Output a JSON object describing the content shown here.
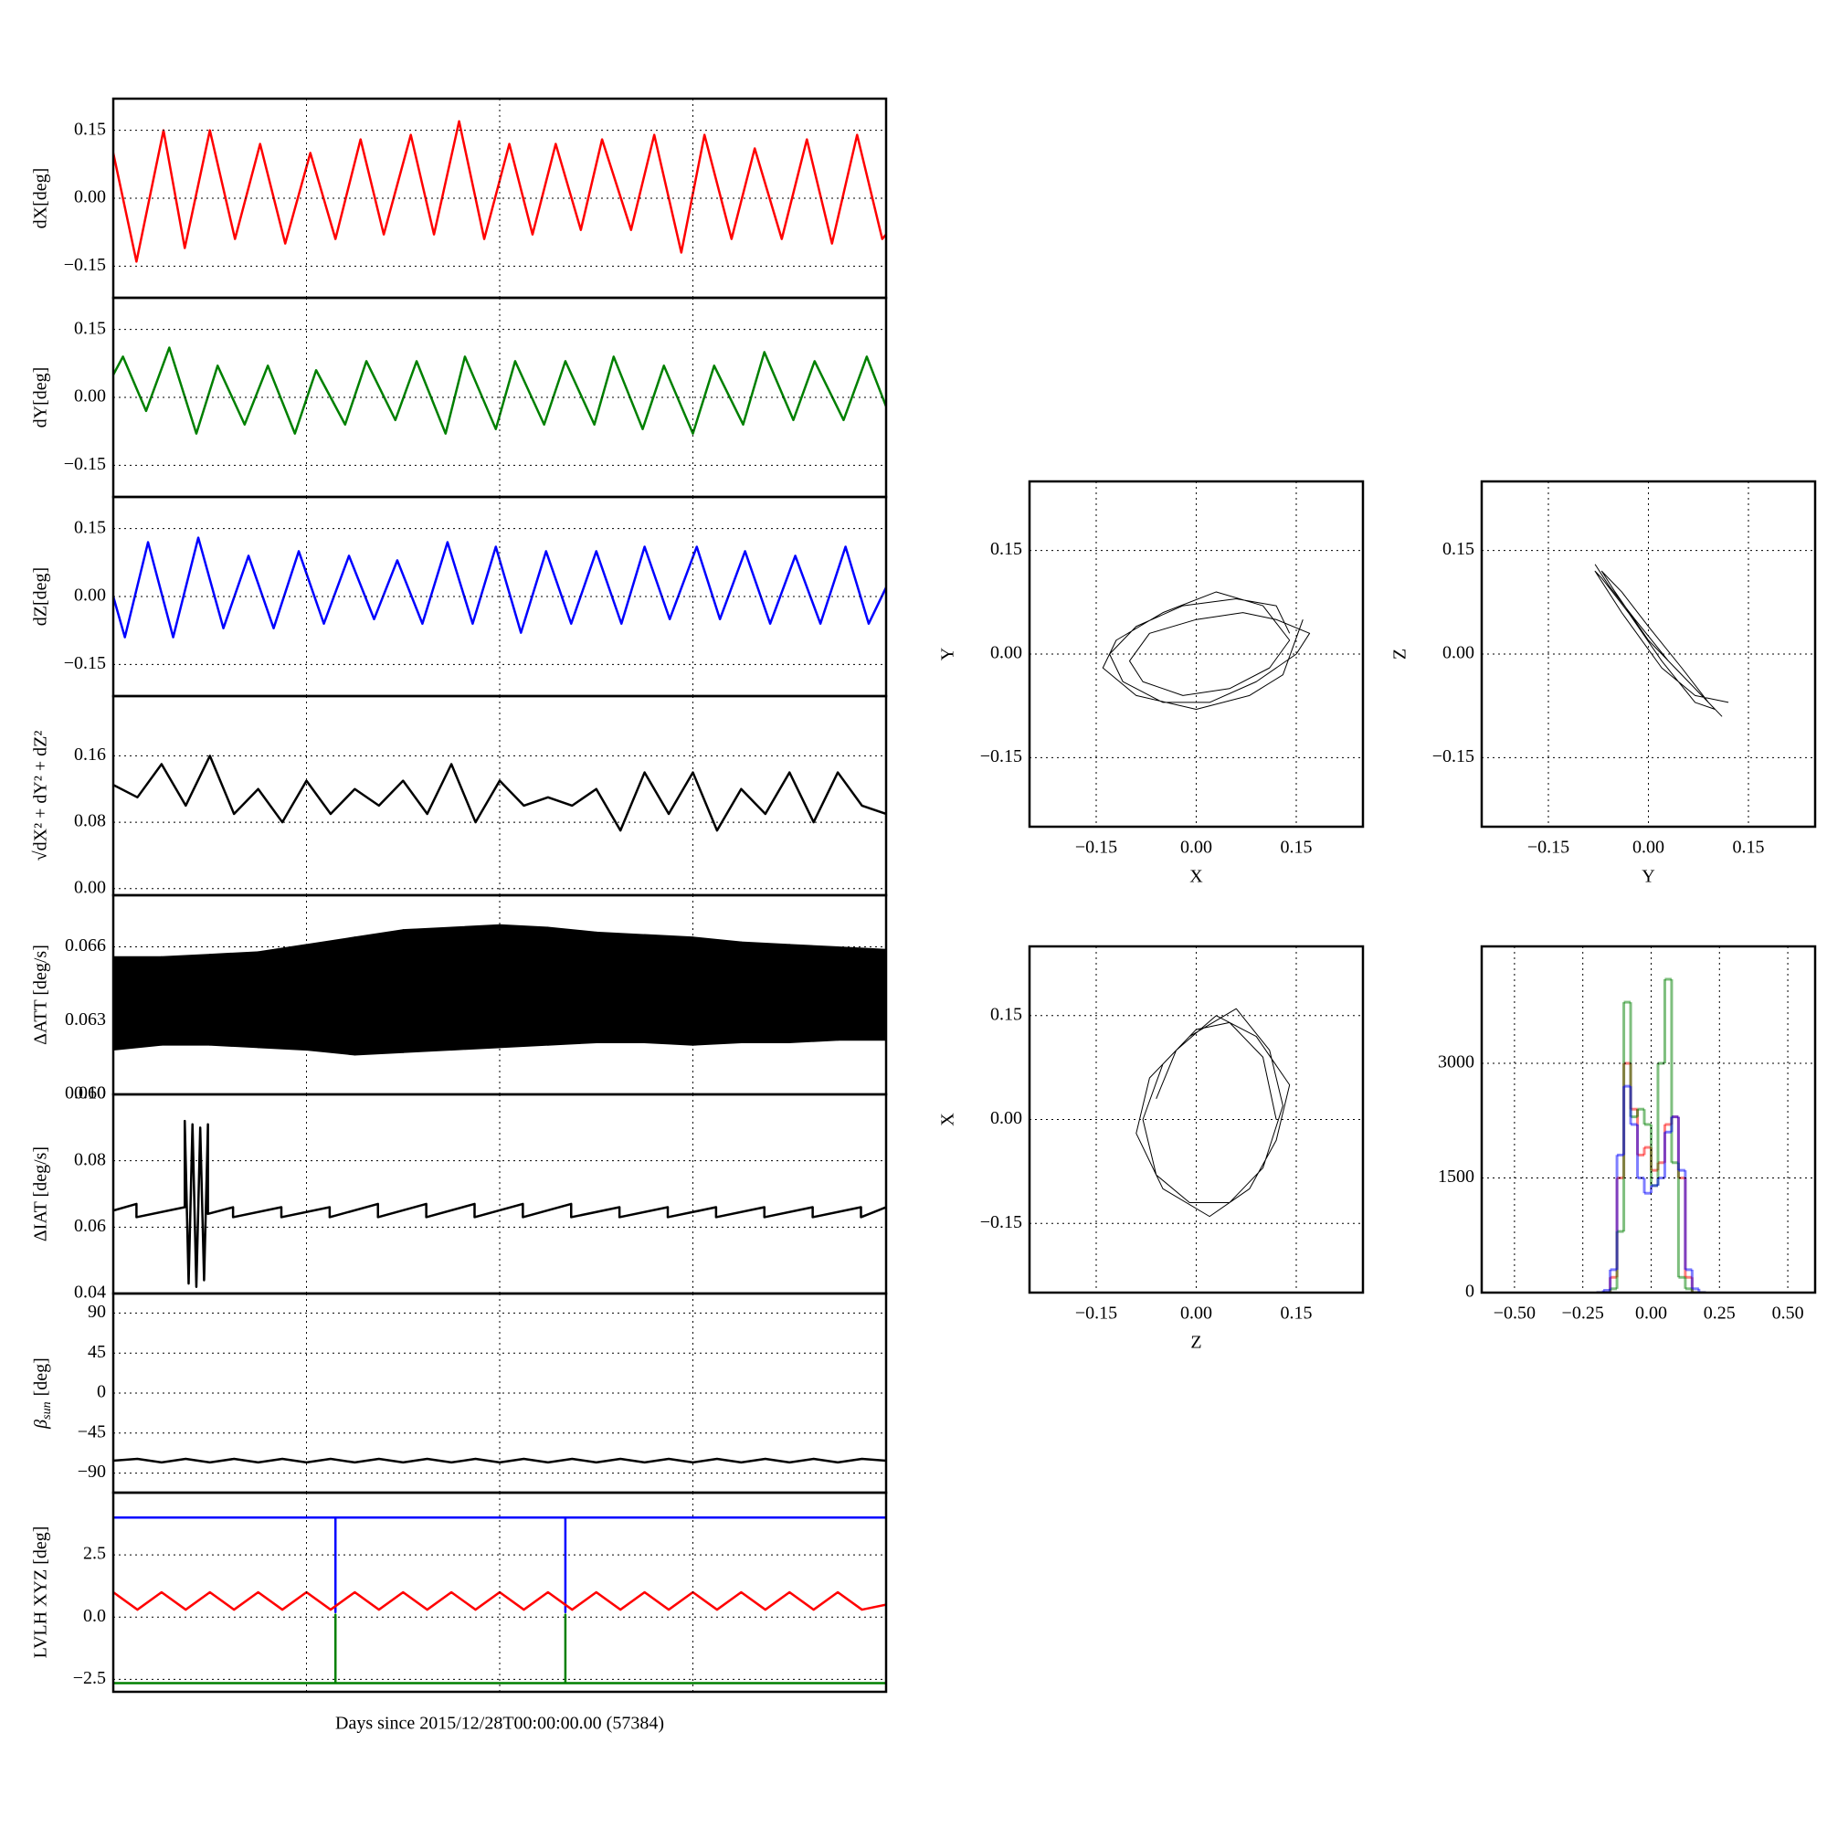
{
  "chart_data": [
    {
      "type": "line",
      "ylabel": "dX[deg]",
      "color": "#ff0000",
      "x": [
        0,
        0.12,
        0.26,
        0.37,
        0.5,
        0.63,
        0.76,
        0.89,
        1.02,
        1.15,
        1.28,
        1.4,
        1.54,
        1.66,
        1.79,
        1.92,
        2.05,
        2.17,
        2.29,
        2.42,
        2.53,
        2.68,
        2.8,
        2.94,
        3.06,
        3.2,
        3.32,
        3.46,
        3.59,
        3.72,
        3.85,
        3.98,
        4.0
      ],
      "values": [
        0.1,
        -0.14,
        0.15,
        -0.11,
        0.15,
        -0.09,
        0.12,
        -0.1,
        0.1,
        -0.09,
        0.13,
        -0.08,
        0.14,
        -0.08,
        0.17,
        -0.09,
        0.12,
        -0.08,
        0.12,
        -0.07,
        0.13,
        -0.07,
        0.14,
        -0.12,
        0.14,
        -0.09,
        0.11,
        -0.09,
        0.13,
        -0.1,
        0.14,
        -0.09,
        -0.08
      ],
      "xlim": [
        0,
        4
      ],
      "xticks": [
        0,
        1,
        2,
        3,
        4
      ],
      "ylim": [
        -0.22,
        0.22
      ],
      "yticks": [
        {
          "value": -0.15,
          "label": "−0.15"
        },
        {
          "value": 0,
          "label": "0.00"
        },
        0.15
      ],
      "grid": true
    },
    {
      "type": "line",
      "ylabel": "dY[deg]",
      "color": "#008000",
      "x": [
        0,
        0.05,
        0.17,
        0.29,
        0.43,
        0.54,
        0.68,
        0.8,
        0.94,
        1.05,
        1.2,
        1.31,
        1.46,
        1.57,
        1.72,
        1.82,
        1.98,
        2.08,
        2.23,
        2.34,
        2.49,
        2.59,
        2.74,
        2.85,
        3.0,
        3.11,
        3.26,
        3.37,
        3.52,
        3.63,
        3.78,
        3.9,
        4.0
      ],
      "values": [
        0.05,
        0.09,
        -0.03,
        0.11,
        -0.08,
        0.07,
        -0.06,
        0.07,
        -0.08,
        0.06,
        -0.06,
        0.08,
        -0.05,
        0.08,
        -0.08,
        0.09,
        -0.07,
        0.08,
        -0.06,
        0.08,
        -0.06,
        0.09,
        -0.07,
        0.07,
        -0.08,
        0.07,
        -0.06,
        0.1,
        -0.05,
        0.08,
        -0.05,
        0.09,
        -0.02
      ],
      "xlim": [
        0,
        4
      ],
      "xticks": [
        0,
        1,
        2,
        3,
        4
      ],
      "ylim": [
        -0.22,
        0.22
      ],
      "yticks": [
        {
          "value": -0.15,
          "label": "−0.15"
        },
        {
          "value": 0,
          "label": "0.00"
        },
        0.15
      ],
      "grid": true
    },
    {
      "type": "line",
      "ylabel": "dZ[deg]",
      "color": "#0000ff",
      "x": [
        0,
        0.06,
        0.18,
        0.31,
        0.44,
        0.57,
        0.7,
        0.83,
        0.96,
        1.09,
        1.22,
        1.35,
        1.47,
        1.6,
        1.73,
        1.86,
        1.98,
        2.11,
        2.24,
        2.37,
        2.5,
        2.63,
        2.75,
        2.88,
        3.02,
        3.14,
        3.27,
        3.4,
        3.53,
        3.66,
        3.79,
        3.91,
        4.0
      ],
      "values": [
        0.0,
        -0.09,
        0.12,
        -0.09,
        0.13,
        -0.07,
        0.09,
        -0.07,
        0.1,
        -0.06,
        0.09,
        -0.05,
        0.08,
        -0.06,
        0.12,
        -0.06,
        0.11,
        -0.08,
        0.1,
        -0.06,
        0.1,
        -0.06,
        0.11,
        -0.05,
        0.11,
        -0.05,
        0.1,
        -0.06,
        0.09,
        -0.06,
        0.11,
        -0.06,
        0.02
      ],
      "xlim": [
        0,
        4
      ],
      "xticks": [
        0,
        1,
        2,
        3,
        4
      ],
      "ylim": [
        -0.22,
        0.22
      ],
      "yticks": [
        {
          "value": -0.15,
          "label": "−0.15"
        },
        {
          "value": 0,
          "label": "0.00"
        },
        0.15
      ],
      "grid": true
    },
    {
      "type": "line",
      "ylabel": "√dX² + dY² + dZ²",
      "color": "#000000",
      "x": [
        0,
        0.125,
        0.25,
        0.375,
        0.5,
        0.625,
        0.75,
        0.875,
        1,
        1.125,
        1.25,
        1.375,
        1.5,
        1.625,
        1.75,
        1.875,
        2,
        2.125,
        2.25,
        2.375,
        2.5,
        2.625,
        2.75,
        2.875,
        3,
        3.125,
        3.25,
        3.375,
        3.5,
        3.625,
        3.75,
        3.875,
        4
      ],
      "values": [
        0.125,
        0.11,
        0.15,
        0.1,
        0.16,
        0.09,
        0.12,
        0.08,
        0.13,
        0.09,
        0.12,
        0.1,
        0.13,
        0.09,
        0.15,
        0.08,
        0.13,
        0.1,
        0.11,
        0.1,
        0.12,
        0.07,
        0.14,
        0.09,
        0.14,
        0.07,
        0.12,
        0.09,
        0.14,
        0.08,
        0.14,
        0.1,
        0.09
      ],
      "xlim": [
        0,
        4
      ],
      "xticks": [
        0,
        1,
        2,
        3,
        4
      ],
      "ylim": [
        -0.008,
        0.232
      ],
      "yticks": [
        {
          "value": 0,
          "label": "0.00"
        },
        0.08,
        0.16
      ],
      "grid": true
    },
    {
      "type": "band",
      "ylabel": "ΔATT [deg/s]",
      "color": "#000000",
      "x": [
        0,
        0.25,
        0.5,
        0.75,
        1,
        1.25,
        1.5,
        1.75,
        2,
        2.25,
        2.5,
        2.75,
        3,
        3.25,
        3.5,
        3.75,
        4
      ],
      "lower": [
        0.0618,
        0.062,
        0.062,
        0.0619,
        0.0618,
        0.0616,
        0.0617,
        0.0618,
        0.0619,
        0.062,
        0.0621,
        0.0621,
        0.062,
        0.0621,
        0.0621,
        0.0622,
        0.0622
      ],
      "upper": [
        0.0656,
        0.0656,
        0.0657,
        0.0658,
        0.0661,
        0.0664,
        0.0667,
        0.0668,
        0.0669,
        0.0668,
        0.0666,
        0.0665,
        0.0664,
        0.0662,
        0.0661,
        0.066,
        0.0659
      ],
      "xlim": [
        0,
        4
      ],
      "xticks": [
        0,
        1,
        2,
        3,
        4
      ],
      "ylim": [
        0.06,
        0.0681
      ],
      "yticks": [
        {
          "value": 0.06,
          "label": "0.060"
        },
        0.063,
        0.066
      ],
      "grid": true
    },
    {
      "type": "line",
      "ylabel": "ΔIAT [deg/s]",
      "color": "#000000",
      "x": [
        0,
        0.12,
        0.12,
        0.37,
        0.37,
        0.39,
        0.41,
        0.43,
        0.45,
        0.47,
        0.49,
        0.49,
        0.62,
        0.62,
        0.87,
        0.87,
        1.12,
        1.12,
        1.37,
        1.37,
        1.62,
        1.62,
        1.87,
        1.87,
        2.12,
        2.12,
        2.37,
        2.37,
        2.62,
        2.62,
        2.87,
        2.87,
        3.12,
        3.12,
        3.37,
        3.37,
        3.62,
        3.62,
        3.87,
        3.87,
        4.0
      ],
      "values": [
        0.065,
        0.067,
        0.063,
        0.066,
        0.092,
        0.043,
        0.091,
        0.042,
        0.09,
        0.044,
        0.091,
        0.064,
        0.066,
        0.063,
        0.066,
        0.063,
        0.066,
        0.063,
        0.067,
        0.063,
        0.067,
        0.063,
        0.067,
        0.063,
        0.067,
        0.063,
        0.067,
        0.063,
        0.066,
        0.063,
        0.066,
        0.063,
        0.066,
        0.063,
        0.066,
        0.063,
        0.066,
        0.063,
        0.066,
        0.063,
        0.066
      ],
      "xlim": [
        0,
        4
      ],
      "xticks": [
        0,
        1,
        2,
        3,
        4
      ],
      "ylim": [
        0.04,
        0.1
      ],
      "yticks": [
        0.04,
        0.06,
        0.08,
        {
          "value": 0.1,
          "label": "0.10"
        }
      ],
      "grid": true
    },
    {
      "type": "line",
      "ylabel": {
        "symbol": "β",
        "subscript": "sun",
        "unit": "[deg]"
      },
      "color": "#000000",
      "x": [
        0,
        0.125,
        0.25,
        0.375,
        0.5,
        0.625,
        0.75,
        0.875,
        1,
        1.125,
        1.25,
        1.375,
        1.5,
        1.625,
        1.75,
        1.875,
        2,
        2.125,
        2.25,
        2.375,
        2.5,
        2.625,
        2.75,
        2.875,
        3,
        3.125,
        3.25,
        3.375,
        3.5,
        3.625,
        3.75,
        3.875,
        4
      ],
      "values": [
        -76,
        -74,
        -78,
        -74,
        -78,
        -74,
        -78,
        -74,
        -78,
        -74,
        -78,
        -74,
        -78,
        -74,
        -78,
        -74,
        -78,
        -74,
        -78,
        -74,
        -78,
        -74,
        -78,
        -74,
        -78,
        -74,
        -78,
        -74,
        -78,
        -74,
        -78,
        -74,
        -76
      ],
      "xlim": [
        0,
        4
      ],
      "xticks": [
        0,
        1,
        2,
        3,
        4
      ],
      "ylim": [
        -112,
        112
      ],
      "yticks": [
        {
          "value": -90,
          "label": "−90"
        },
        {
          "value": -45,
          "label": "−45"
        },
        0,
        45,
        90
      ],
      "grid": true
    },
    {
      "type": "line",
      "ylabel": "LVLH XYZ [deg]",
      "xlabel": "Days since 2015/12/28T00:00:00.00 (57384)",
      "series": [
        {
          "color": "#0000ff",
          "x": [
            0,
            1.15,
            1.15,
            1.15,
            2.34,
            2.34,
            2.34,
            4.0
          ],
          "values": [
            4.0,
            4.0,
            0.2,
            4.0,
            4.0,
            0.2,
            4.0,
            4.0
          ]
        },
        {
          "color": "#ff0000",
          "x": [
            0,
            0.125,
            0.25,
            0.375,
            0.5,
            0.625,
            0.75,
            0.875,
            1,
            1.125,
            1.25,
            1.375,
            1.5,
            1.625,
            1.75,
            1.875,
            2,
            2.125,
            2.25,
            2.375,
            2.5,
            2.625,
            2.75,
            2.875,
            3,
            3.125,
            3.25,
            3.375,
            3.5,
            3.625,
            3.75,
            3.875,
            4
          ],
          "values": [
            1.0,
            0.3,
            1.0,
            0.3,
            1.0,
            0.3,
            1.0,
            0.3,
            1.0,
            0.3,
            1.0,
            0.3,
            1.0,
            0.3,
            1.0,
            0.3,
            1.0,
            0.3,
            1.0,
            0.3,
            1.0,
            0.3,
            1.0,
            0.3,
            1.0,
            0.3,
            1.0,
            0.3,
            1.0,
            0.3,
            1.0,
            0.3,
            0.5
          ]
        },
        {
          "color": "#008000",
          "x": [
            0,
            1.15,
            1.15,
            1.15,
            2.34,
            2.34,
            2.34,
            4.0
          ],
          "values": [
            -2.65,
            -2.65,
            0.1,
            -2.65,
            -2.65,
            0.1,
            -2.65,
            -2.65
          ]
        }
      ],
      "xlim": [
        0,
        4
      ],
      "xticks": [
        0,
        1,
        2,
        3,
        4
      ],
      "ylim": [
        -3,
        5
      ],
      "yticks": [
        {
          "value": -2.5,
          "label": "−2.5"
        },
        {
          "value": 0,
          "label": "0.0"
        },
        2.5
      ],
      "grid": true
    },
    {
      "type": "line",
      "xlabel": "X",
      "ylabel": "Y",
      "color": "#000000",
      "x": [
        0.14,
        0.12,
        0.06,
        -0.02,
        -0.09,
        -0.13,
        -0.11,
        -0.05,
        0.02,
        0.09,
        0.15,
        0.17,
        0.12,
        0.07,
        0.0,
        -0.07,
        -0.1,
        -0.08,
        -0.02,
        0.05,
        0.11,
        0.14,
        0.1,
        0.03,
        -0.05,
        -0.12,
        -0.14,
        -0.09,
        0.0,
        0.08,
        0.13,
        0.16
      ],
      "values": [
        0.03,
        0.07,
        0.08,
        0.07,
        0.04,
        0.0,
        -0.04,
        -0.07,
        -0.07,
        -0.04,
        0.0,
        0.03,
        0.05,
        0.06,
        0.05,
        0.03,
        -0.01,
        -0.04,
        -0.06,
        -0.05,
        -0.02,
        0.02,
        0.07,
        0.09,
        0.06,
        0.02,
        -0.02,
        -0.06,
        -0.08,
        -0.06,
        -0.03,
        0.05
      ],
      "xlim": [
        -0.25,
        0.25
      ],
      "xticks": [
        {
          "value": -0.15,
          "label": "−0.15"
        },
        {
          "value": 0,
          "label": "0.00"
        },
        0.15
      ],
      "ylim": [
        -0.25,
        0.25
      ],
      "yticks": [
        {
          "value": -0.15,
          "label": "−0.15"
        },
        {
          "value": 0,
          "label": "0.00"
        },
        0.15
      ],
      "grid": true
    },
    {
      "type": "line",
      "xlabel": "Y",
      "ylabel": "Z",
      "color": "#000000",
      "x": [
        -0.08,
        -0.06,
        -0.02,
        0.03,
        0.08,
        0.11,
        0.09,
        0.05,
        0.0,
        -0.04,
        -0.07,
        -0.05,
        0.0,
        0.06,
        0.1,
        0.07,
        0.02,
        -0.03,
        -0.07,
        -0.08,
        -0.04,
        0.02,
        0.07,
        0.12
      ],
      "values": [
        0.13,
        0.1,
        0.05,
        -0.01,
        -0.06,
        -0.09,
        -0.07,
        -0.02,
        0.04,
        0.09,
        0.12,
        0.09,
        0.02,
        -0.04,
        -0.08,
        -0.07,
        -0.01,
        0.06,
        0.11,
        0.12,
        0.06,
        -0.02,
        -0.06,
        -0.07
      ],
      "xlim": [
        -0.25,
        0.25
      ],
      "xticks": [
        {
          "value": -0.15,
          "label": "−0.15"
        },
        {
          "value": 0,
          "label": "0.00"
        },
        0.15
      ],
      "ylim": [
        -0.25,
        0.25
      ],
      "yticks": [
        {
          "value": -0.15,
          "label": "−0.15"
        },
        {
          "value": 0,
          "label": "0.00"
        },
        0.15
      ],
      "grid": true
    },
    {
      "type": "line",
      "xlabel": "Z",
      "ylabel": "X",
      "color": "#000000",
      "x": [
        0.12,
        0.1,
        0.05,
        0.0,
        -0.05,
        -0.08,
        -0.06,
        -0.01,
        0.05,
        0.1,
        0.13,
        0.11,
        0.06,
        -0.01,
        -0.07,
        -0.09,
        -0.05,
        0.02,
        0.08,
        0.12,
        0.14,
        0.09,
        0.03,
        -0.03,
        -0.06
      ],
      "values": [
        0.0,
        0.09,
        0.14,
        0.13,
        0.08,
        0.0,
        -0.08,
        -0.12,
        -0.12,
        -0.07,
        0.02,
        0.1,
        0.16,
        0.12,
        0.06,
        -0.02,
        -0.1,
        -0.14,
        -0.1,
        -0.03,
        0.05,
        0.12,
        0.15,
        0.1,
        0.03
      ],
      "xlim": [
        -0.25,
        0.25
      ],
      "xticks": [
        {
          "value": -0.15,
          "label": "−0.15"
        },
        {
          "value": 0,
          "label": "0.00"
        },
        0.15
      ],
      "ylim": [
        -0.25,
        0.25
      ],
      "yticks": [
        {
          "value": -0.15,
          "label": "−0.15"
        },
        {
          "value": 0,
          "label": "0.00"
        },
        0.15
      ],
      "grid": true
    },
    {
      "type": "histogram",
      "alpha": 0.5,
      "bins": [
        -0.2,
        -0.175,
        -0.15,
        -0.125,
        -0.1,
        -0.075,
        -0.05,
        -0.025,
        0,
        0.025,
        0.05,
        0.075,
        0.1,
        0.125,
        0.15,
        0.175,
        0.2
      ],
      "series": [
        {
          "color": "#ff0000",
          "values": [
            0,
            0,
            200,
            1500,
            3000,
            2400,
            1800,
            1900,
            1600,
            1700,
            2200,
            2300,
            1500,
            200,
            0,
            0
          ]
        },
        {
          "color": "#008000",
          "values": [
            0,
            0,
            50,
            800,
            3800,
            2300,
            2400,
            2200,
            1400,
            3000,
            4100,
            1700,
            200,
            50,
            0,
            0
          ]
        },
        {
          "color": "#0000ff",
          "values": [
            0,
            30,
            300,
            1800,
            2700,
            2200,
            1500,
            1300,
            1400,
            1500,
            2100,
            2300,
            1600,
            300,
            50,
            0
          ]
        }
      ],
      "xlim": [
        -0.62,
        0.6
      ],
      "xticks": [
        {
          "value": -0.5,
          "label": "−0.50"
        },
        {
          "value": -0.25,
          "label": "−0.25"
        },
        {
          "value": 0,
          "label": "0.00"
        },
        0.25,
        {
          "value": 0.5,
          "label": "0.50"
        }
      ],
      "ylim": [
        0,
        4530
      ],
      "yticks": [
        0,
        1500,
        3000
      ],
      "grid": true
    }
  ]
}
